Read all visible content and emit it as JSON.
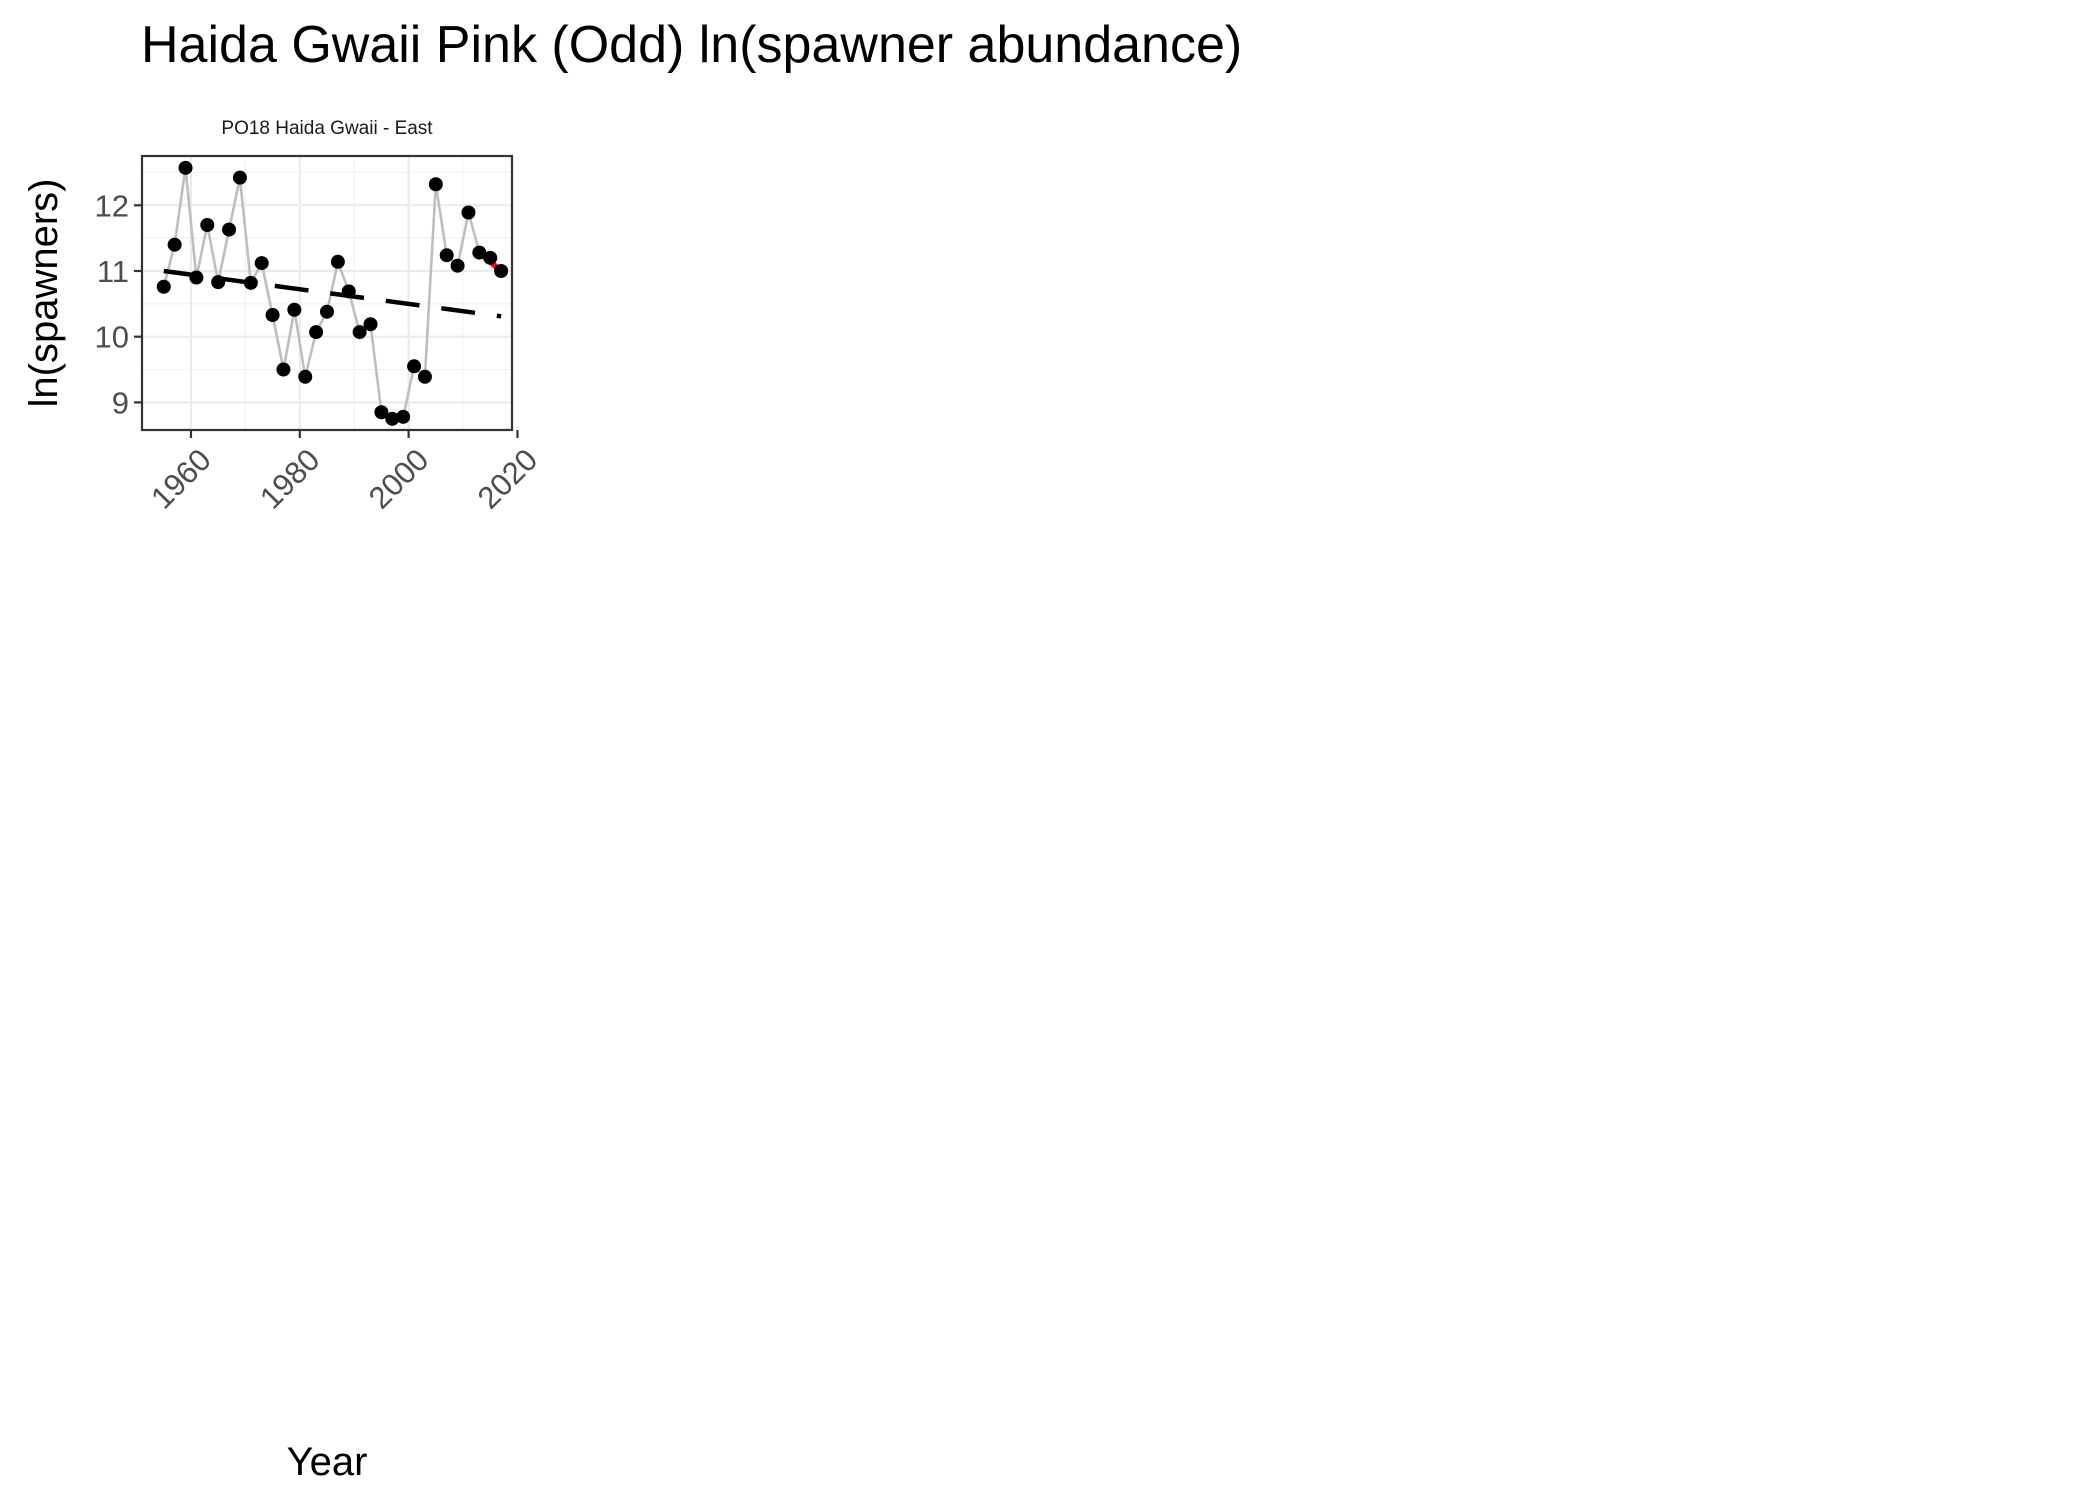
{
  "chart_data": {
    "type": "line",
    "title": "Haida Gwaii Pink (Odd) ln(spawner abundance)",
    "panel_title": "PO18 Haida Gwaii - East",
    "xlabel": "Year",
    "ylabel": "ln(spawners)",
    "xlim": [
      1951,
      2019
    ],
    "ylim": [
      8.58,
      12.75
    ],
    "x_ticks": [
      1960,
      1980,
      2000,
      2020
    ],
    "y_ticks": [
      9,
      10,
      11,
      12
    ],
    "grid": true,
    "series": [
      {
        "role": "observed",
        "x": [
          1955,
          1957,
          1959,
          1961,
          1963,
          1965,
          1967,
          1969,
          1971,
          1973,
          1975,
          1977,
          1979,
          1981,
          1983,
          1985,
          1987,
          1989,
          1991,
          1993,
          1995,
          1997,
          1999,
          2001,
          2003,
          2005,
          2007,
          2009,
          2011,
          2013,
          2015,
          2017
        ],
        "values": [
          10.76,
          11.4,
          12.57,
          10.9,
          11.7,
          10.83,
          11.63,
          12.42,
          10.82,
          11.12,
          10.33,
          9.5,
          10.41,
          9.39,
          10.07,
          10.38,
          11.14,
          10.69,
          10.07,
          10.19,
          8.85,
          8.75,
          8.78,
          9.55,
          9.39,
          12.32,
          11.24,
          11.08,
          11.89,
          11.28,
          11.2,
          11.0
        ],
        "color": "#000000",
        "line_color": "#bebebe"
      },
      {
        "role": "long-term-trend",
        "x": [
          1955,
          2017
        ],
        "values": [
          11.0,
          10.31
        ],
        "color": "#000000",
        "style": "dashed"
      },
      {
        "role": "recent-trend",
        "x": [
          2013,
          2017
        ],
        "values": [
          11.28,
          11.0
        ],
        "color": "#ff0000",
        "style": "solid"
      }
    ]
  }
}
